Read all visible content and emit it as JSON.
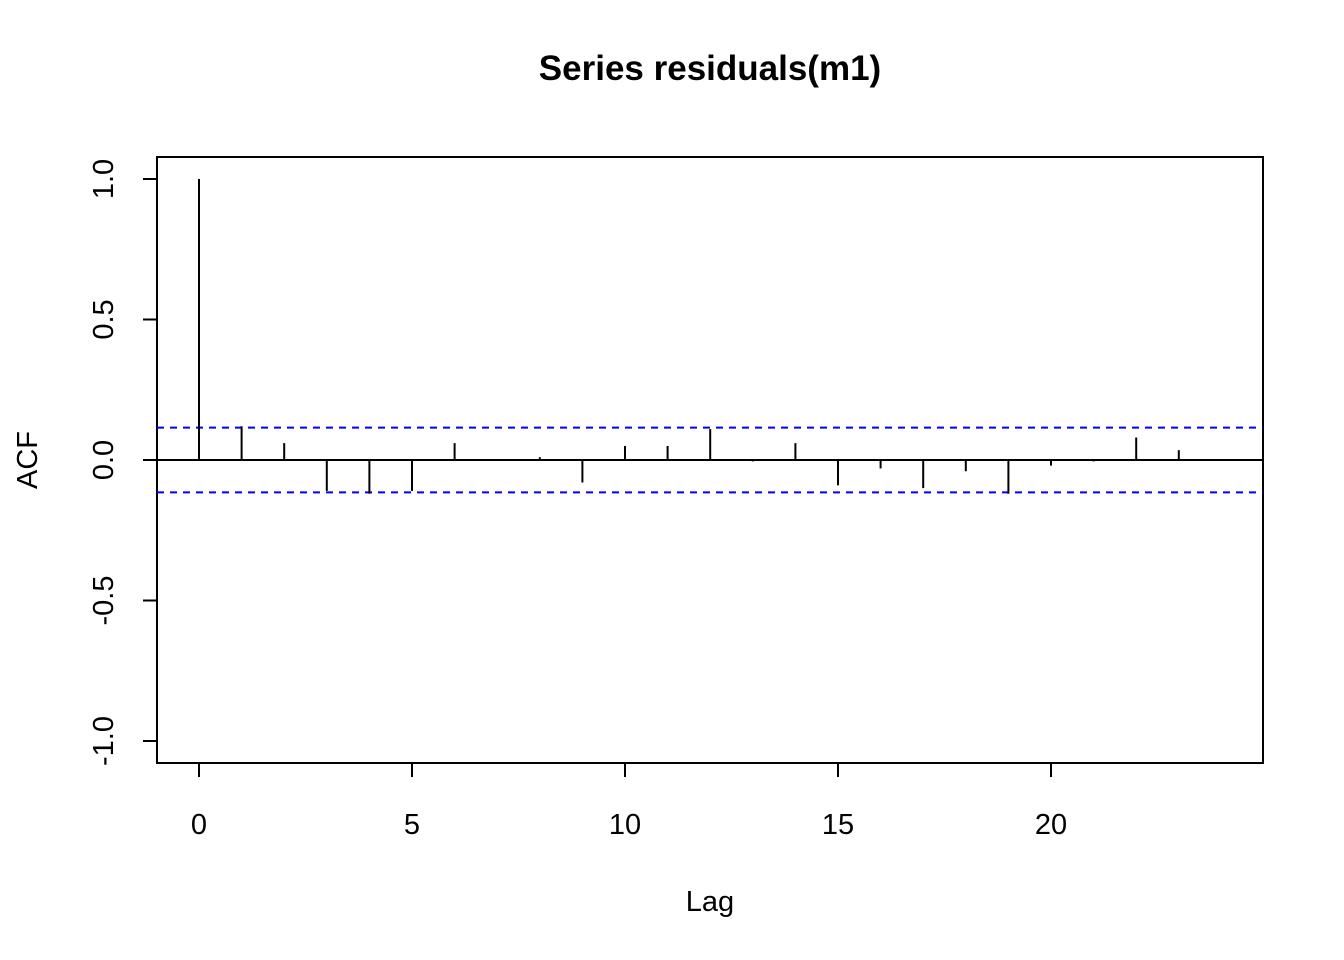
{
  "chart_data": {
    "type": "bar",
    "title": "Series  residuals(m1)",
    "xlabel": "Lag",
    "ylabel": "ACF",
    "xlim": [
      -1,
      25
    ],
    "ylim": [
      -1.0,
      1.0
    ],
    "x_ticks": [
      0,
      5,
      10,
      15,
      20
    ],
    "x_tick_labels": [
      "0",
      "5",
      "10",
      "15",
      "20"
    ],
    "y_ticks": [
      -1.0,
      -0.5,
      0.0,
      0.5,
      1.0
    ],
    "y_tick_labels": [
      "-1.0",
      "-0.5",
      "0.0",
      "0.5",
      "1.0"
    ],
    "lags": [
      0,
      1,
      2,
      3,
      4,
      5,
      6,
      7,
      8,
      9,
      10,
      11,
      12,
      13,
      14,
      15,
      16,
      17,
      18,
      19,
      20,
      21,
      22,
      23
    ],
    "values": [
      1.0,
      0.12,
      0.06,
      -0.11,
      -0.12,
      -0.11,
      0.06,
      0.0,
      0.01,
      -0.08,
      0.05,
      0.05,
      0.11,
      -0.005,
      0.06,
      -0.09,
      -0.03,
      -0.1,
      -0.04,
      -0.12,
      -0.02,
      -0.005,
      0.08,
      0.035
    ],
    "confidence_bound": 0.115,
    "confidence_line_color": "#0000ff",
    "bar_color": "#000000",
    "grid": false
  }
}
